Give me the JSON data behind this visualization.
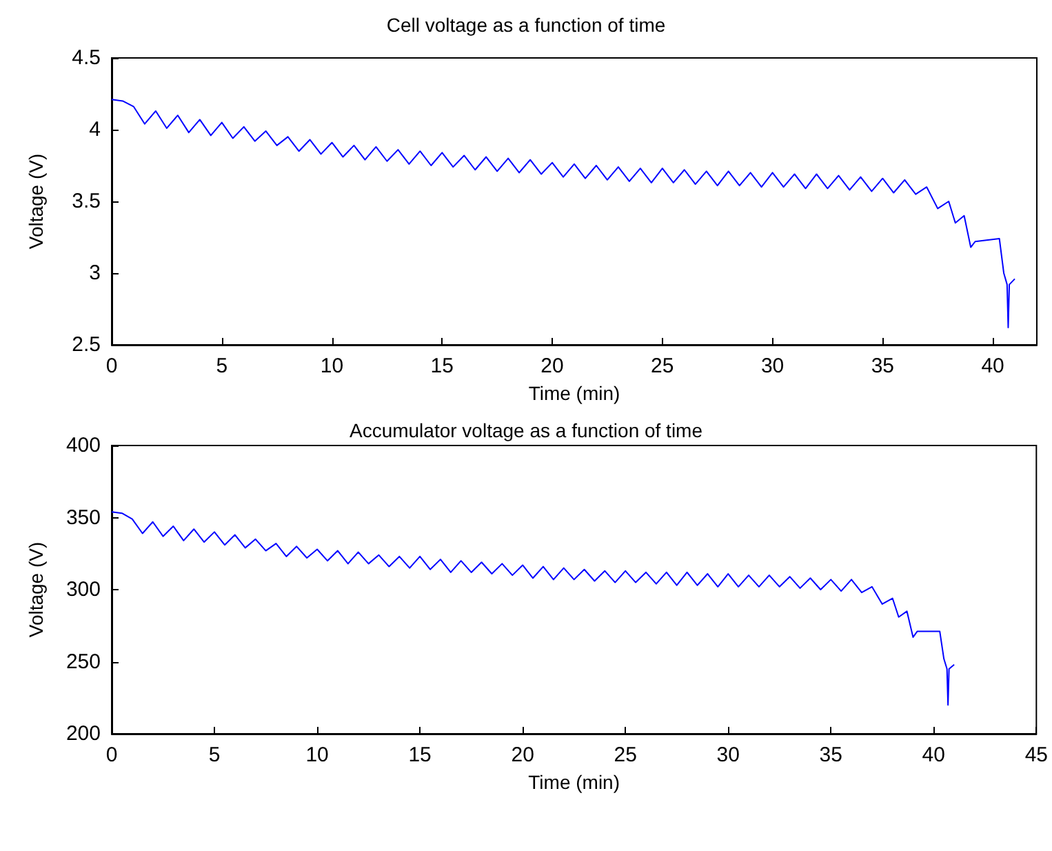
{
  "chart_data": [
    {
      "type": "line",
      "title": "Cell voltage as a function of time",
      "xlabel": "Time (min)",
      "ylabel": "Voltage (V)",
      "xlim": [
        0,
        42
      ],
      "xticks": [
        0,
        5,
        10,
        15,
        20,
        25,
        30,
        35,
        40
      ],
      "ylim": [
        2.5,
        4.5
      ],
      "yticks": [
        2.5,
        3,
        3.5,
        4,
        4.5
      ],
      "grid": false,
      "series": [
        {
          "color": "#0000ff",
          "x": [
            0,
            0.5,
            1,
            1.5,
            2,
            2.5,
            3,
            3.5,
            4,
            4.5,
            5,
            5.5,
            6,
            6.5,
            7,
            7.5,
            8,
            8.5,
            9,
            9.5,
            10,
            10.5,
            11,
            11.5,
            12,
            12.5,
            13,
            13.5,
            14,
            14.5,
            15,
            15.5,
            16,
            16.5,
            17,
            17.5,
            18,
            18.5,
            19,
            19.5,
            20,
            20.5,
            21,
            21.5,
            22,
            22.5,
            23,
            23.5,
            24,
            24.5,
            25,
            25.5,
            26,
            26.5,
            27,
            27.5,
            28,
            28.5,
            29,
            29.5,
            30,
            30.5,
            31,
            31.5,
            32,
            32.5,
            33,
            33.5,
            34,
            34.5,
            35,
            35.5,
            36,
            36.5,
            37,
            37.5,
            38,
            38.3,
            38.7,
            39,
            39.2,
            40.3,
            40.5,
            40.65,
            40.7,
            40.75,
            41
          ],
          "values": [
            4.21,
            4.2,
            4.16,
            4.04,
            4.13,
            4.01,
            4.1,
            3.98,
            4.07,
            3.96,
            4.05,
            3.94,
            4.02,
            3.92,
            3.99,
            3.89,
            3.95,
            3.85,
            3.93,
            3.83,
            3.91,
            3.81,
            3.89,
            3.79,
            3.88,
            3.78,
            3.86,
            3.76,
            3.85,
            3.75,
            3.84,
            3.74,
            3.82,
            3.72,
            3.81,
            3.71,
            3.8,
            3.7,
            3.79,
            3.69,
            3.77,
            3.67,
            3.76,
            3.66,
            3.75,
            3.65,
            3.74,
            3.64,
            3.73,
            3.63,
            3.73,
            3.63,
            3.72,
            3.62,
            3.71,
            3.61,
            3.71,
            3.61,
            3.7,
            3.6,
            3.7,
            3.6,
            3.69,
            3.59,
            3.69,
            3.59,
            3.68,
            3.58,
            3.67,
            3.57,
            3.66,
            3.56,
            3.65,
            3.55,
            3.6,
            3.45,
            3.5,
            3.35,
            3.4,
            3.18,
            3.22,
            3.24,
            3,
            2.92,
            2.62,
            2.92,
            2.96
          ]
        }
      ]
    },
    {
      "type": "line",
      "title": "Accumulator voltage as a function of time",
      "xlabel": "Time (min)",
      "ylabel": "Voltage (V)",
      "xlim": [
        0,
        45
      ],
      "xticks": [
        0,
        5,
        10,
        15,
        20,
        25,
        30,
        35,
        40,
        45
      ],
      "ylim": [
        200,
        400
      ],
      "yticks": [
        200,
        250,
        300,
        350,
        400
      ],
      "grid": false,
      "series": [
        {
          "color": "#0000ff",
          "x": [
            0,
            0.5,
            1,
            1.5,
            2,
            2.5,
            3,
            3.5,
            4,
            4.5,
            5,
            5.5,
            6,
            6.5,
            7,
            7.5,
            8,
            8.5,
            9,
            9.5,
            10,
            10.5,
            11,
            11.5,
            12,
            12.5,
            13,
            13.5,
            14,
            14.5,
            15,
            15.5,
            16,
            16.5,
            17,
            17.5,
            18,
            18.5,
            19,
            19.5,
            20,
            20.5,
            21,
            21.5,
            22,
            22.5,
            23,
            23.5,
            24,
            24.5,
            25,
            25.5,
            26,
            26.5,
            27,
            27.5,
            28,
            28.5,
            29,
            29.5,
            30,
            30.5,
            31,
            31.5,
            32,
            32.5,
            33,
            33.5,
            34,
            34.5,
            35,
            35.5,
            36,
            36.5,
            37,
            37.5,
            38,
            38.3,
            38.7,
            39,
            39.2,
            40.3,
            40.5,
            40.65,
            40.7,
            40.75,
            41
          ],
          "values": [
            354,
            353,
            349,
            339,
            347,
            337,
            344,
            334,
            342,
            333,
            340,
            331,
            338,
            329,
            335,
            327,
            332,
            323,
            330,
            322,
            328,
            320,
            327,
            318,
            326,
            318,
            324,
            316,
            323,
            315,
            323,
            314,
            321,
            312,
            320,
            312,
            319,
            311,
            318,
            310,
            317,
            308,
            316,
            307,
            315,
            307,
            314,
            306,
            313,
            305,
            313,
            305,
            312,
            304,
            312,
            303,
            312,
            303,
            311,
            302,
            311,
            302,
            310,
            302,
            310,
            302,
            309,
            301,
            308,
            300,
            307,
            299,
            307,
            298,
            302,
            290,
            294,
            281,
            285,
            267,
            271,
            271,
            252,
            245,
            220,
            245,
            248
          ]
        }
      ]
    }
  ]
}
